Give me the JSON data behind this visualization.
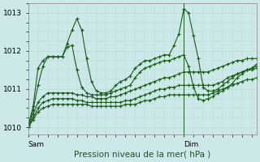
{
  "title": "",
  "xlabel": "Pression niveau de la mer( hPa )",
  "ylabel": "",
  "background_color": "#cce8e8",
  "plot_bg_color": "#d4eaea",
  "grid_color": "#b8d8d8",
  "line_color": "#1a5c1a",
  "xlim": [
    0,
    47
  ],
  "ylim": [
    1009.8,
    1013.25
  ],
  "yticks": [
    1010,
    1011,
    1012,
    1013
  ],
  "xtick_labels": [
    "Sam",
    "Dim"
  ],
  "xtick_positions": [
    0,
    32
  ],
  "vline_x": 32,
  "series": [
    [
      1010.05,
      1010.55,
      1011.55,
      1011.75,
      1011.85,
      1011.85,
      1011.85,
      1011.85,
      1012.2,
      1012.55,
      1012.85,
      1012.55,
      1011.8,
      1011.2,
      1010.95,
      1010.9,
      1010.9,
      1010.95,
      1011.1,
      1011.2,
      1011.25,
      1011.35,
      1011.55,
      1011.65,
      1011.75,
      1011.75,
      1011.8,
      1011.85,
      1011.9,
      1011.9,
      1012.15,
      1012.45,
      1013.1,
      1013.0,
      1012.4,
      1011.8,
      1011.05,
      1010.95,
      1010.95,
      1011.0,
      1011.1,
      1011.2,
      1011.3,
      1011.4,
      1011.45,
      1011.5,
      1011.55,
      1011.6
    ],
    [
      1010.05,
      1010.45,
      1011.1,
      1011.6,
      1011.85,
      1011.85,
      1011.85,
      1011.85,
      1012.1,
      1012.15,
      1011.5,
      1011.05,
      1010.9,
      1010.85,
      1010.85,
      1010.85,
      1010.85,
      1010.9,
      1010.95,
      1011.0,
      1011.05,
      1011.1,
      1011.3,
      1011.45,
      1011.55,
      1011.6,
      1011.65,
      1011.7,
      1011.75,
      1011.75,
      1011.8,
      1011.85,
      1011.9,
      1011.6,
      1011.05,
      1010.75,
      1010.7,
      1010.75,
      1010.8,
      1010.9,
      1010.95,
      1011.05,
      1011.15,
      1011.3,
      1011.4,
      1011.5,
      1011.55,
      1011.65
    ],
    [
      1010.0,
      1010.35,
      1010.65,
      1010.8,
      1010.9,
      1010.9,
      1010.9,
      1010.9,
      1010.9,
      1010.9,
      1010.85,
      1010.85,
      1010.8,
      1010.8,
      1010.75,
      1010.75,
      1010.75,
      1010.8,
      1010.8,
      1010.85,
      1010.9,
      1010.95,
      1011.0,
      1011.05,
      1011.1,
      1011.15,
      1011.2,
      1011.25,
      1011.3,
      1011.3,
      1011.35,
      1011.4,
      1011.45,
      1011.45,
      1011.45,
      1011.45,
      1011.45,
      1011.45,
      1011.5,
      1011.55,
      1011.6,
      1011.65,
      1011.7,
      1011.75,
      1011.75,
      1011.8,
      1011.8,
      1011.8
    ],
    [
      1010.0,
      1010.25,
      1010.5,
      1010.65,
      1010.7,
      1010.75,
      1010.75,
      1010.75,
      1010.75,
      1010.75,
      1010.7,
      1010.7,
      1010.65,
      1010.65,
      1010.65,
      1010.65,
      1010.65,
      1010.65,
      1010.65,
      1010.65,
      1010.7,
      1010.7,
      1010.75,
      1010.8,
      1010.85,
      1010.9,
      1010.95,
      1011.0,
      1011.0,
      1011.05,
      1011.05,
      1011.1,
      1011.1,
      1011.1,
      1011.1,
      1011.1,
      1011.1,
      1011.1,
      1011.1,
      1011.15,
      1011.2,
      1011.3,
      1011.35,
      1011.4,
      1011.45,
      1011.5,
      1011.5,
      1011.55
    ],
    [
      1010.0,
      1010.2,
      1010.4,
      1010.5,
      1010.55,
      1010.6,
      1010.6,
      1010.6,
      1010.6,
      1010.6,
      1010.6,
      1010.6,
      1010.6,
      1010.55,
      1010.55,
      1010.55,
      1010.55,
      1010.55,
      1010.55,
      1010.55,
      1010.6,
      1010.6,
      1010.6,
      1010.65,
      1010.7,
      1010.7,
      1010.75,
      1010.8,
      1010.8,
      1010.85,
      1010.85,
      1010.85,
      1010.85,
      1010.85,
      1010.85,
      1010.85,
      1010.85,
      1010.85,
      1010.9,
      1010.95,
      1011.0,
      1011.05,
      1011.1,
      1011.15,
      1011.2,
      1011.25,
      1011.25,
      1011.3
    ]
  ]
}
